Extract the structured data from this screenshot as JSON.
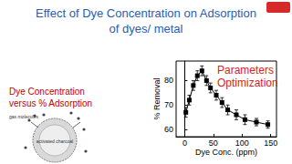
{
  "header": {
    "title_lines": [
      "Effect of Dye Concentration on Adsorption",
      "of dyes/ metal"
    ]
  },
  "left_panel": {
    "lines": [
      "Dye Concentration",
      "versus % Adsorption"
    ],
    "diagram": {
      "labels": [
        "gas molecules",
        "activated charcoal"
      ]
    }
  },
  "chart_data": {
    "type": "line",
    "x": [
      2,
      8,
      15,
      22,
      30,
      38,
      45,
      55,
      65,
      75,
      90,
      105,
      125,
      145
    ],
    "values": [
      67,
      72,
      78,
      82,
      84,
      80,
      77,
      74,
      71,
      68,
      66,
      64,
      63,
      62
    ],
    "errors": [
      2,
      2,
      2,
      2,
      2,
      2,
      2,
      2,
      2,
      2,
      2,
      2,
      1.5,
      1.5
    ],
    "xlabel": "Dye Conc. (ppm)",
    "ylabel": "% Removal",
    "xlim": [
      -15,
      160
    ],
    "xticks": [
      0,
      50,
      100,
      150
    ],
    "ylim": [
      57,
      88
    ],
    "yticks": [
      60,
      70,
      80
    ],
    "color": "#000000",
    "marker": "square",
    "grid": false,
    "annotations": [
      "Parameters",
      "Optimization"
    ]
  }
}
